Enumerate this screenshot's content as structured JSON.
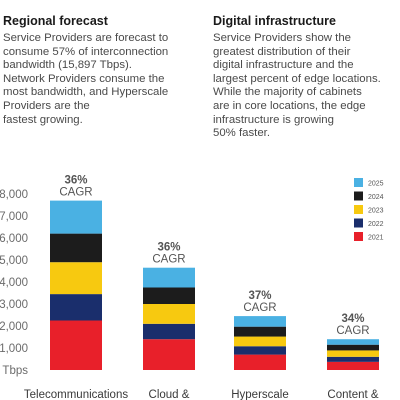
{
  "left": {
    "title": "Regional forecast",
    "lines": [
      "Service Providers are forecast to",
      "consume 57% of interconnection",
      "bandwidth (15,897 Tbps).",
      "Network Providers consume the",
      "most bandwidth, and Hyperscale",
      "Providers are the",
      "fastest growing."
    ]
  },
  "right": {
    "title": "Digital infrastructure",
    "lines": [
      "Service Providers show the",
      "greatest distribution of their",
      "digital infrastructure and the",
      "largest percent of edge locations.",
      "While the majority of cabinets",
      "are in core locations, the edge",
      "infrastructure is growing",
      "50% faster."
    ]
  },
  "chart_data": {
    "type": "bar",
    "stacked": true,
    "categories": [
      "Telecommunications",
      "Cloud &",
      "Hyperscale",
      "Content &"
    ],
    "y_tick_labels": [
      "Tbps",
      "1,000",
      "2,000",
      "3,000",
      "4,000",
      "5,000",
      "6,000",
      "7,000",
      "8,000"
    ],
    "ylim": [
      0,
      8000
    ],
    "cagr_percent": [
      "36%",
      "36%",
      "37%",
      "34%"
    ],
    "cagr_label": "CAGR",
    "legend_position": "top-right",
    "series": [
      {
        "name": "2021",
        "color": "#e8202a",
        "values": [
          2250,
          1400,
          700,
          370
        ]
      },
      {
        "name": "2022",
        "color": "#1a2e6c",
        "values": [
          1200,
          700,
          380,
          230
        ]
      },
      {
        "name": "2023",
        "color": "#f7c910",
        "values": [
          1450,
          900,
          440,
          290
        ]
      },
      {
        "name": "2024",
        "color": "#1c1c1c",
        "values": [
          1300,
          750,
          450,
          260
        ]
      },
      {
        "name": "2025",
        "color": "#4ab1e3",
        "values": [
          1500,
          900,
          480,
          250
        ]
      }
    ]
  }
}
